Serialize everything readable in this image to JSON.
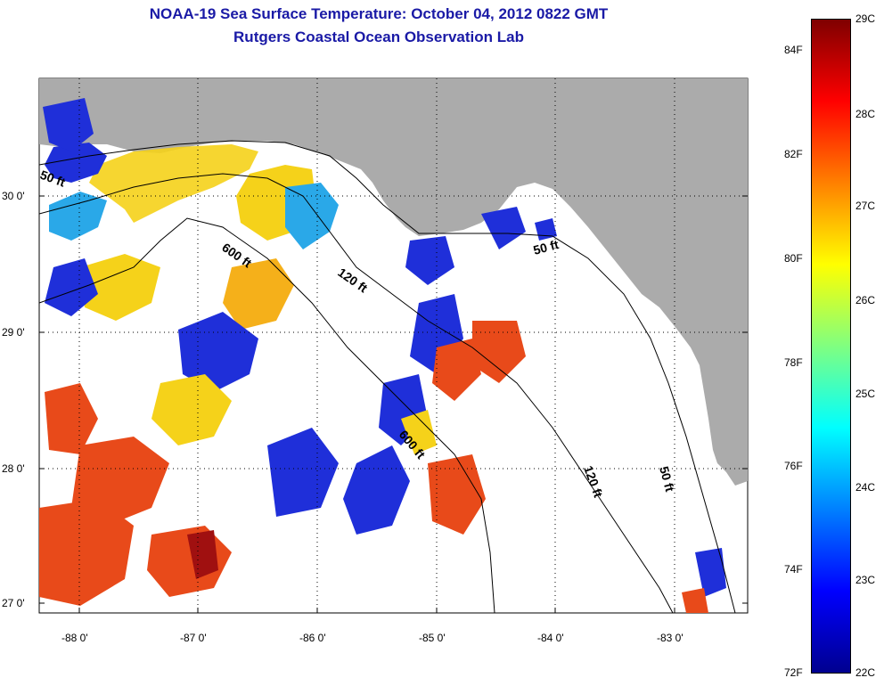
{
  "title": {
    "line1": "NOAA-19 Sea Surface Temperature:  October 04, 2012 0822 GMT",
    "line2": "Rutgers Coastal Ocean Observation Lab"
  },
  "axes": {
    "lat_labels": [
      "30 0'",
      "29 0'",
      "28 0'",
      "27 0'"
    ],
    "lon_labels": [
      "-88 0'",
      "-87 0'",
      "-86 0'",
      "-85 0'",
      "-84 0'",
      "-83 0'"
    ]
  },
  "contours": [
    {
      "label": "50 ft"
    },
    {
      "label": "600 ft"
    },
    {
      "label": "120 ft"
    },
    {
      "label": "50 ft"
    },
    {
      "label": "600 ft"
    },
    {
      "label": "120 ft"
    },
    {
      "label": "50 ft"
    }
  ],
  "colorbar": {
    "f_labels": [
      "84F",
      "82F",
      "80F",
      "78F",
      "76F",
      "74F",
      "72F"
    ],
    "c_labels": [
      "29C",
      "28C",
      "27C",
      "26C",
      "25C",
      "24C",
      "23C",
      "22C"
    ],
    "colors": [
      "#7f0000",
      "#ff0000",
      "#ff8000",
      "#ffff00",
      "#80ff80",
      "#00ffff",
      "#0080ff",
      "#0000ff",
      "#00008f"
    ]
  }
}
